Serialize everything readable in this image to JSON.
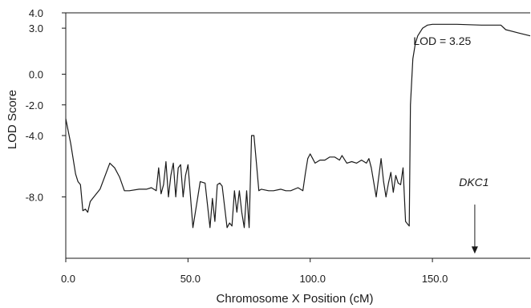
{
  "chart_data": {
    "type": "line",
    "title": "",
    "xlabel": "Chromosome X Position (cM)",
    "ylabel": "LOD Score",
    "xlim": [
      0,
      190
    ],
    "ylim": [
      -12,
      4
    ],
    "xticks": [
      {
        "value": 0,
        "label": "0.0"
      },
      {
        "value": 50,
        "label": "50.0"
      },
      {
        "value": 100,
        "label": "100.0"
      },
      {
        "value": 150,
        "label": "150.0"
      }
    ],
    "yticks": [
      {
        "value": 4,
        "label": "4.0"
      },
      {
        "value": 3,
        "label": "3.0"
      },
      {
        "value": 0,
        "label": "0.0"
      },
      {
        "value": -2,
        "label": "-2.0"
      },
      {
        "value": -4,
        "label": "-4.0"
      },
      {
        "value": -8,
        "label": "-8.0"
      }
    ],
    "grid": false,
    "series": [
      {
        "x": [
          0,
          2,
          4,
          5,
          6,
          7,
          8,
          9,
          10,
          11,
          14,
          18,
          20,
          22,
          24,
          26,
          30,
          33,
          35,
          37,
          38,
          39,
          40,
          41,
          42,
          43,
          44,
          45,
          46,
          47,
          48,
          49,
          50,
          52,
          54,
          55,
          57,
          59,
          60,
          61,
          62,
          63,
          64,
          66,
          67,
          68,
          69,
          70,
          71,
          72,
          73,
          74,
          75,
          76,
          77,
          78,
          79,
          80,
          83,
          85,
          88,
          90,
          92,
          95,
          97,
          98,
          99,
          100,
          101,
          102,
          104,
          106,
          108,
          110,
          112,
          113,
          115,
          117,
          119,
          121,
          123,
          124,
          125,
          127,
          129,
          130,
          131,
          132,
          133,
          134,
          135,
          136,
          137,
          138,
          139,
          140,
          140.5,
          141,
          142,
          143,
          144,
          146,
          148,
          150,
          155,
          160,
          170,
          178,
          180,
          185,
          190
        ],
        "y": [
          -2.9,
          -4.5,
          -6.5,
          -7.0,
          -7.2,
          -8.9,
          -8.8,
          -9.0,
          -8.3,
          -8.1,
          -7.5,
          -5.8,
          -6.1,
          -6.7,
          -7.6,
          -7.6,
          -7.5,
          -7.5,
          -7.4,
          -7.6,
          -6.1,
          -7.8,
          -7.2,
          -5.7,
          -8.0,
          -6.6,
          -5.8,
          -8.0,
          -6.1,
          -5.9,
          -8.0,
          -6.6,
          -5.9,
          -10.0,
          -8.0,
          -7.0,
          -7.1,
          -10.0,
          -8.1,
          -9.6,
          -7.2,
          -7.1,
          -7.3,
          -10.0,
          -9.7,
          -9.9,
          -7.6,
          -9.0,
          -7.6,
          -9.0,
          -10.0,
          -7.6,
          -10.0,
          -4.0,
          -4.0,
          -5.8,
          -7.6,
          -7.5,
          -7.6,
          -7.6,
          -7.5,
          -7.6,
          -7.6,
          -7.4,
          -7.6,
          -6.5,
          -5.5,
          -5.2,
          -5.5,
          -5.8,
          -5.6,
          -5.6,
          -5.4,
          -5.4,
          -5.6,
          -5.3,
          -5.8,
          -5.7,
          -5.8,
          -5.6,
          -5.8,
          -5.5,
          -6.1,
          -8.0,
          -5.5,
          -7.0,
          -8.0,
          -7.1,
          -6.4,
          -7.7,
          -6.6,
          -7.1,
          -7.2,
          -6.1,
          -9.6,
          -9.8,
          -9.9,
          -2.0,
          1.0,
          2.0,
          2.5,
          3.0,
          3.2,
          3.25,
          3.25,
          3.25,
          3.2,
          3.2,
          2.9,
          2.7,
          2.5
        ]
      }
    ],
    "annotations": [
      {
        "text": "LOD = 3.25",
        "x": 154,
        "y": 1.9
      },
      {
        "text": "DKC1",
        "x": 167,
        "y": -7.3,
        "arrow_from_y": -8.5,
        "arrow_to_y": -11.7
      }
    ]
  }
}
